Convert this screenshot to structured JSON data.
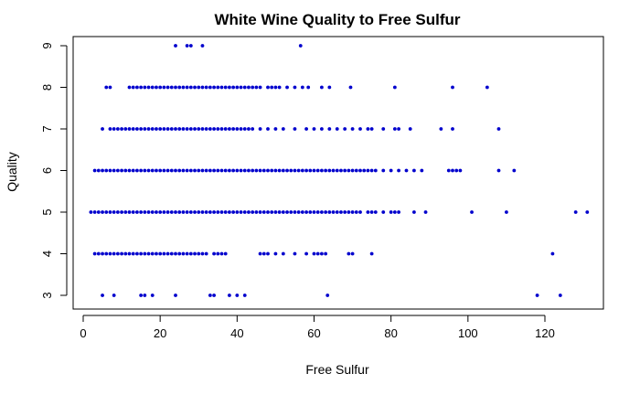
{
  "chart_data": {
    "type": "scatter",
    "title": "White Wine Quality to Free Sulfur",
    "xlabel": "Free Sulfur",
    "ylabel": "Quality",
    "xlim": [
      0,
      135
    ],
    "ylim": [
      3,
      9
    ],
    "xticks": [
      0,
      20,
      40,
      60,
      80,
      100,
      120
    ],
    "yticks": [
      3,
      4,
      5,
      6,
      7,
      8,
      9
    ],
    "grid": false,
    "point_color": "#0000cd",
    "series": [
      {
        "points": [
          [
            24,
            9
          ],
          [
            27,
            9
          ],
          [
            28,
            9
          ],
          [
            31,
            9
          ],
          [
            56.5,
            9
          ],
          [
            6,
            8
          ],
          [
            7,
            8
          ],
          [
            48,
            8
          ],
          [
            49,
            8
          ],
          [
            50,
            8
          ],
          [
            51,
            8
          ],
          [
            53,
            8
          ],
          [
            55,
            8
          ],
          [
            57,
            8
          ],
          [
            58.5,
            8
          ],
          [
            62,
            8
          ],
          [
            64,
            8
          ],
          [
            69.5,
            8
          ],
          [
            81,
            8
          ],
          [
            96,
            8
          ],
          [
            105,
            8
          ],
          [
            5,
            7
          ],
          [
            46,
            7
          ],
          [
            48,
            7
          ],
          [
            50,
            7
          ],
          [
            52,
            7
          ],
          [
            55,
            7
          ],
          [
            58,
            7
          ],
          [
            60,
            7
          ],
          [
            62,
            7
          ],
          [
            64,
            7
          ],
          [
            66,
            7
          ],
          [
            68,
            7
          ],
          [
            70,
            7
          ],
          [
            72,
            7
          ],
          [
            74,
            7
          ],
          [
            75,
            7
          ],
          [
            78,
            7
          ],
          [
            81,
            7
          ],
          [
            82,
            7
          ],
          [
            85,
            7
          ],
          [
            93,
            7
          ],
          [
            96,
            7
          ],
          [
            108,
            7
          ],
          [
            76,
            6
          ],
          [
            78,
            6
          ],
          [
            80,
            6
          ],
          [
            82,
            6
          ],
          [
            84,
            6
          ],
          [
            86,
            6
          ],
          [
            88,
            6
          ],
          [
            95,
            6
          ],
          [
            96,
            6
          ],
          [
            97,
            6
          ],
          [
            98,
            6
          ],
          [
            108,
            6
          ],
          [
            112,
            6
          ],
          [
            74,
            5
          ],
          [
            75,
            5
          ],
          [
            76,
            5
          ],
          [
            78,
            5
          ],
          [
            80,
            5
          ],
          [
            81,
            5
          ],
          [
            82,
            5
          ],
          [
            86,
            5
          ],
          [
            89,
            5
          ],
          [
            101,
            5
          ],
          [
            110,
            5
          ],
          [
            128,
            5
          ],
          [
            131,
            5
          ],
          [
            46,
            4
          ],
          [
            47,
            4
          ],
          [
            48,
            4
          ],
          [
            50,
            4
          ],
          [
            52,
            4
          ],
          [
            55,
            4
          ],
          [
            58,
            4
          ],
          [
            60,
            4
          ],
          [
            61,
            4
          ],
          [
            62,
            4
          ],
          [
            63,
            4
          ],
          [
            69,
            4
          ],
          [
            70,
            4
          ],
          [
            75,
            4
          ],
          [
            122,
            4
          ],
          [
            5,
            3
          ],
          [
            8,
            3
          ],
          [
            15,
            3
          ],
          [
            16,
            3
          ],
          [
            18,
            3
          ],
          [
            24,
            3
          ],
          [
            33,
            3
          ],
          [
            34,
            3
          ],
          [
            38,
            3
          ],
          [
            40,
            3
          ],
          [
            42,
            3
          ],
          [
            63.5,
            3
          ],
          [
            118,
            3
          ],
          [
            124,
            3
          ]
        ],
        "dense_ranges": [
          {
            "y": 8,
            "x_from": 12,
            "x_to": 46,
            "step": 1
          },
          {
            "y": 7,
            "x_from": 7,
            "x_to": 44,
            "step": 1
          },
          {
            "y": 6,
            "x_from": 3,
            "x_to": 75,
            "step": 1
          },
          {
            "y": 5,
            "x_from": 2,
            "x_to": 72,
            "step": 1
          },
          {
            "y": 4,
            "x_from": 3,
            "x_to": 32,
            "step": 1
          },
          {
            "y": 4,
            "x_from": 34,
            "x_to": 37,
            "step": 1
          }
        ]
      }
    ]
  }
}
